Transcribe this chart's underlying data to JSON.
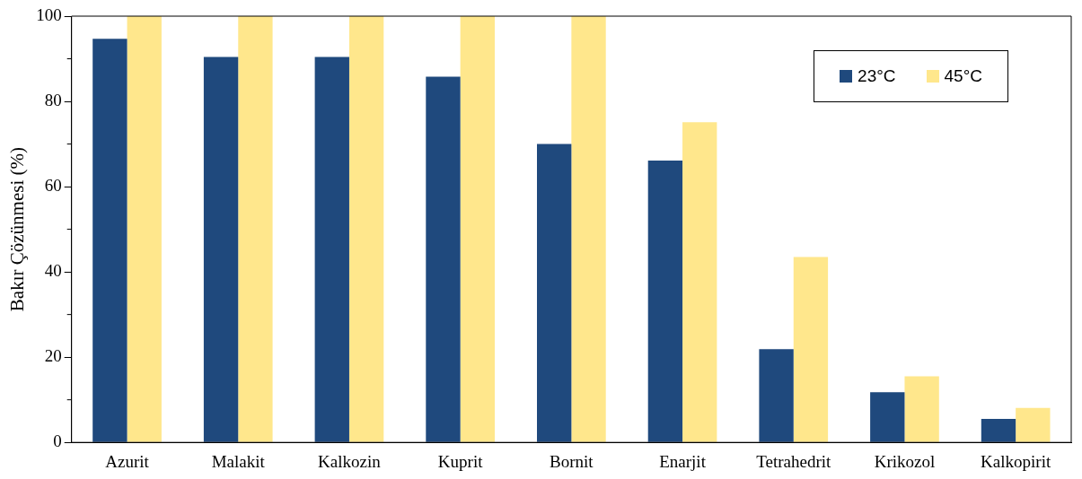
{
  "chart_data": {
    "type": "bar",
    "ylabel": "Bakır Çözünmesi (%)",
    "categories": [
      "Azurit",
      "Malakit",
      "Kalkozin",
      "Kuprit",
      "Bornit",
      "Enarjit",
      "Tetrahedrit",
      "Krikozol",
      "Kalkopirit"
    ],
    "series": [
      {
        "name": "23°C",
        "color": "#1f497d",
        "values": [
          94.7,
          90.4,
          90.4,
          85.8,
          70.0,
          66.1,
          21.9,
          11.8,
          5.5
        ]
      },
      {
        "name": "45°C",
        "color": "#ffe78c",
        "values": [
          100,
          100,
          100,
          100,
          100,
          75.1,
          43.5,
          15.5,
          8.1
        ]
      }
    ],
    "ylim": [
      0,
      100
    ],
    "yticks": [
      0,
      20,
      40,
      60,
      80,
      100
    ],
    "grid": false,
    "legend": "top right"
  }
}
